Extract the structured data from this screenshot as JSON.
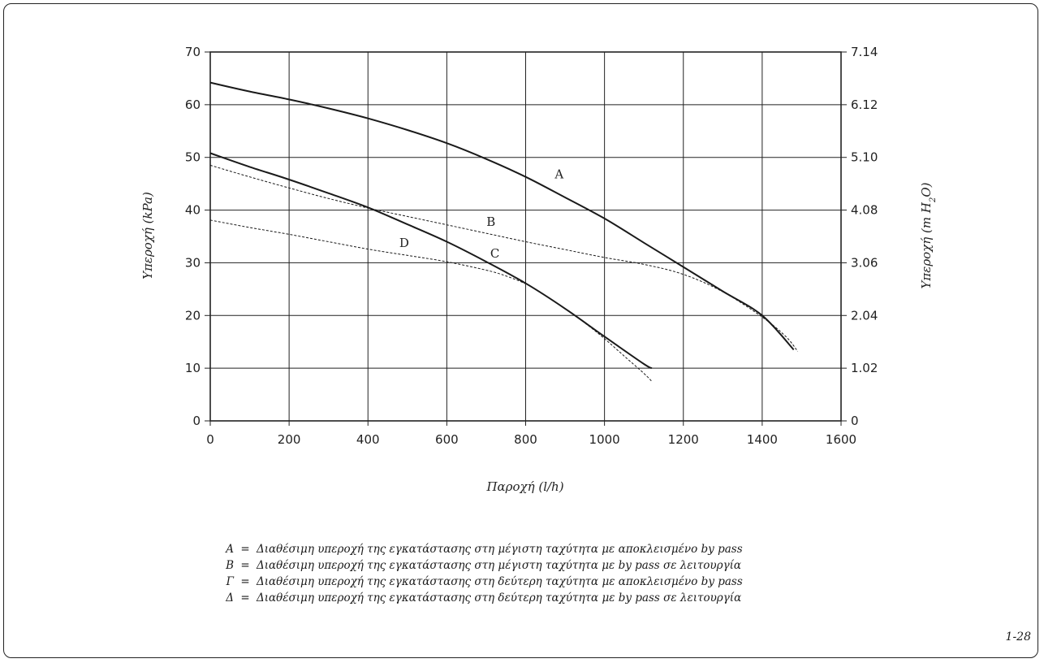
{
  "figure_number": "1-28",
  "chart_data": {
    "type": "line",
    "title": "",
    "xlabel": "Παροχή (l/h)",
    "ylabel_left": "Υπεροχή (kPa)",
    "ylabel_right_prefix": "Υπεροχή (m H",
    "ylabel_right_sub": "2",
    "ylabel_right_suffix": "O)",
    "xlim": [
      0,
      1600
    ],
    "ylim": [
      0,
      70
    ],
    "grid": true,
    "x_ticks": [
      "0",
      "200",
      "400",
      "600",
      "800",
      "1000",
      "1200",
      "1400",
      "1600"
    ],
    "y_ticks_left": [
      "0",
      "10",
      "20",
      "30",
      "40",
      "50",
      "60",
      "70"
    ],
    "y_ticks_right": [
      "0",
      "1.02",
      "2.04",
      "3.06",
      "4.08",
      "5.10",
      "6.12",
      "7.14"
    ],
    "series": [
      {
        "name": "A",
        "style": "solid",
        "label_at": [
          885,
          46
        ],
        "x": [
          0,
          100,
          200,
          300,
          400,
          500,
          600,
          700,
          800,
          900,
          1000,
          1100,
          1200,
          1300,
          1400,
          1480
        ],
        "y": [
          64.2,
          62.5,
          61.0,
          59.3,
          57.4,
          55.2,
          52.7,
          49.7,
          46.3,
          42.4,
          38.4,
          33.8,
          29.2,
          24.6,
          20.0,
          13.5
        ]
      },
      {
        "name": "B",
        "style": "dashed",
        "label_at": [
          712,
          37
        ],
        "x": [
          0,
          100,
          200,
          300,
          400,
          500,
          600,
          700,
          800,
          900,
          1000,
          1100,
          1200,
          1300,
          1400,
          1460,
          1490
        ],
        "y": [
          48.5,
          46.3,
          44.2,
          42.2,
          40.4,
          38.8,
          37.2,
          35.6,
          34.0,
          32.5,
          31.0,
          29.7,
          27.8,
          24.5,
          19.7,
          16.0,
          13.2
        ]
      },
      {
        "name": "C",
        "style": "solid",
        "label_at": [
          722,
          31
        ],
        "x": [
          0,
          100,
          200,
          300,
          400,
          500,
          600,
          700,
          800,
          900,
          1000,
          1100,
          1120
        ],
        "y": [
          50.8,
          48.2,
          45.8,
          43.2,
          40.5,
          37.3,
          34.0,
          30.2,
          26.1,
          21.3,
          16.0,
          10.8,
          10.0
        ]
      },
      {
        "name": "D",
        "style": "dashed",
        "label_at": [
          492,
          33
        ],
        "x": [
          0,
          100,
          200,
          300,
          400,
          500,
          600,
          700,
          750,
          800,
          850,
          900,
          950,
          1000,
          1050,
          1100,
          1120
        ],
        "y": [
          38.1,
          36.7,
          35.4,
          34.0,
          32.6,
          31.4,
          30.2,
          28.6,
          27.5,
          26.0,
          23.8,
          21.3,
          18.6,
          15.6,
          12.3,
          9.0,
          7.5
        ]
      }
    ]
  },
  "legend": [
    {
      "key": "A",
      "eq": "=",
      "text": "Διαθέσιμη υπεροχή της εγκατάστασης στη μέγιστη ταχύτητα με αποκλεισμένο by pass"
    },
    {
      "key": "B",
      "eq": "=",
      "text": "Διαθέσιμη υπεροχή της εγκατάστασης στη μέγιστη ταχύτητα με by pass σε λειτουργία"
    },
    {
      "key": "Γ",
      "eq": "=",
      "text": "Διαθέσιμη υπεροχή της εγκατάστασης στη δεύτερη ταχύτητα με αποκλεισμένο by pass"
    },
    {
      "key": "Δ",
      "eq": "=",
      "text": "Διαθέσιμη υπεροχή της εγκατάστασης στη δεύτερη ταχύτητα με by pass σε λειτουργία"
    }
  ]
}
